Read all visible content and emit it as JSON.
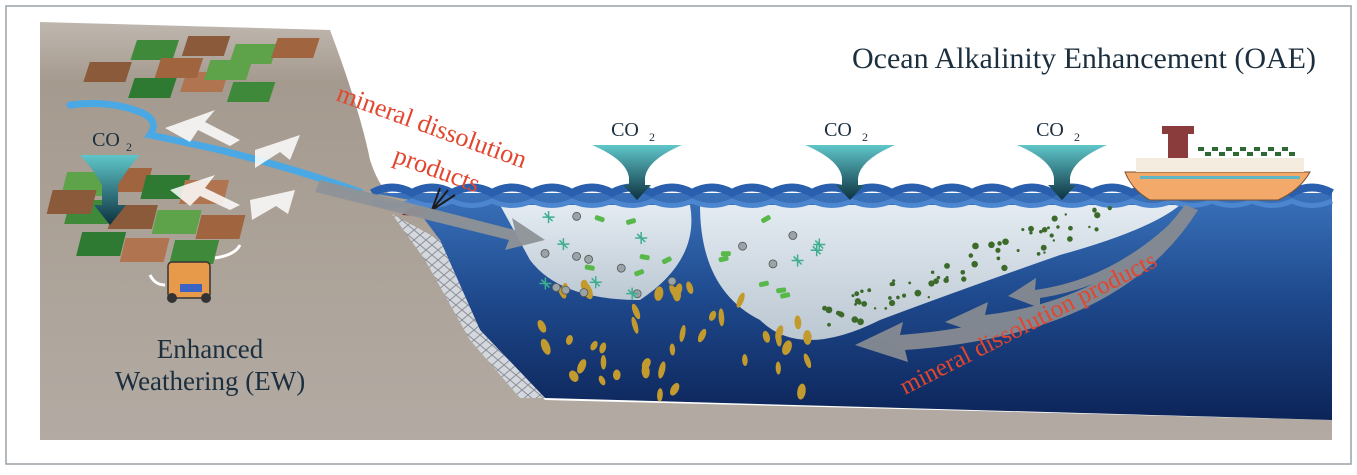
{
  "title": "Ocean Alkalinity Enhancement (OAE)",
  "ew_label": {
    "line1": "Enhanced",
    "line2": "Weathering (EW)"
  },
  "co2_label": {
    "base": "CO",
    "sub": "2"
  },
  "flows": {
    "river_products": {
      "line1": "mineral dissolution",
      "line2": "products"
    },
    "ship_products": "mineral dissolution products"
  },
  "colors": {
    "text_dark": "#1c2f3f",
    "flow_label": "#e2462e",
    "land": "#a59a8f",
    "ocean_surface": "#2f66b0",
    "ocean_deep": "#0f2c66",
    "plume": "#dfe6ea",
    "ship_hull": "#f2a96a",
    "river": "#4aa9e4"
  },
  "icons": [
    "co2-funnel-icon",
    "ship-icon",
    "spreader-truck-icon",
    "plankton-icon",
    "particle-icon",
    "flow-arrow-icon"
  ]
}
